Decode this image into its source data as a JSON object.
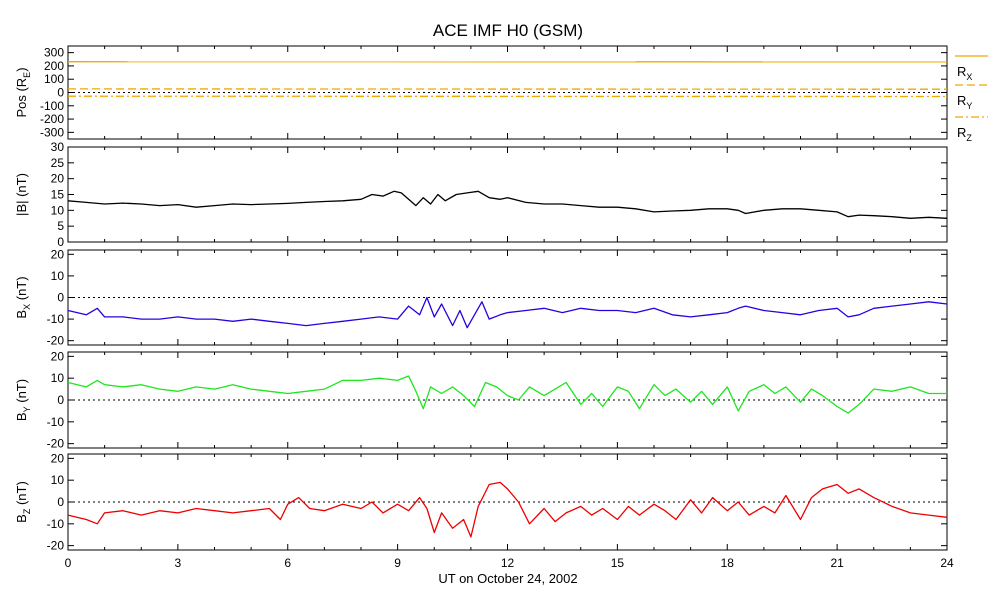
{
  "chart_data": {
    "type": "line",
    "title": "ACE IMF H0 (GSM)",
    "xlabel": "UT on October 24, 2002",
    "xlim": [
      0,
      24
    ],
    "x_ticks": [
      0,
      3,
      6,
      9,
      12,
      15,
      18,
      21,
      24
    ],
    "x_tick_labels": [
      "0",
      "3",
      "6",
      "9",
      "12",
      "15",
      "18",
      "21",
      "24"
    ],
    "colors": {
      "black": "#000000",
      "blue": "#2b00e0",
      "green": "#1ee61e",
      "red": "#ee0000",
      "orange": "#f0a800"
    },
    "panels": [
      {
        "id": "pos",
        "ylabel_main": "Pos (R",
        "ylabel_sub": "E",
        "ylabel_tail": ")",
        "ylim": [
          -350,
          350
        ],
        "yticks": [
          -300,
          -200,
          -100,
          0,
          100,
          200,
          300
        ],
        "ytick_labels": [
          "-300",
          "-200",
          "-100",
          "0",
          "100",
          "200",
          "300"
        ],
        "zero_line": true,
        "series": [
          {
            "name": "R",
            "sub": "X",
            "color": "#f0a800",
            "dash": "solid",
            "x": [
              0,
              24
            ],
            "y": [
              232,
              230
            ]
          },
          {
            "name": "R",
            "sub": "Y",
            "color": "#f0a800",
            "dash": "dashed",
            "x": [
              0,
              24
            ],
            "y": [
              27,
              25
            ]
          },
          {
            "name": "R",
            "sub": "Z",
            "color": "#f0a800",
            "dash": "dashdot",
            "x": [
              0,
              24
            ],
            "y": [
              -28,
              -30
            ]
          }
        ]
      },
      {
        "id": "btot",
        "ylabel_main": "|B| (nT)",
        "ylim": [
          0,
          30
        ],
        "yticks": [
          0,
          5,
          10,
          15,
          20,
          25,
          30
        ],
        "ytick_labels": [
          "0",
          "5",
          "10",
          "15",
          "20",
          "25",
          "30"
        ],
        "zero_line": false,
        "series": [
          {
            "name": "|B|",
            "color": "#000000",
            "x": [
              0,
              0.5,
              1,
              1.5,
              2,
              2.5,
              3,
              3.5,
              4,
              4.5,
              5,
              5.5,
              6,
              6.5,
              7,
              7.5,
              8,
              8.3,
              8.6,
              8.9,
              9.1,
              9.3,
              9.5,
              9.7,
              9.9,
              10.1,
              10.3,
              10.6,
              10.9,
              11.2,
              11.5,
              11.8,
              12,
              12.5,
              13,
              13.5,
              14,
              14.5,
              15,
              15.5,
              16,
              16.5,
              17,
              17.5,
              18,
              18.3,
              18.5,
              19,
              19.5,
              20,
              20.5,
              21,
              21.3,
              21.6,
              22,
              22.5,
              23,
              23.5,
              24
            ],
            "y": [
              13,
              12.5,
              12,
              12.3,
              12,
              11.5,
              11.8,
              11,
              11.5,
              12,
              11.8,
              12,
              12.2,
              12.5,
              12.8,
              13,
              13.5,
              15,
              14.5,
              16,
              15.5,
              13.5,
              11.5,
              14,
              12,
              15,
              13,
              15,
              15.5,
              16,
              14,
              13.5,
              14,
              12.5,
              12,
              12,
              11.5,
              11,
              11,
              10.5,
              9.5,
              9.8,
              10,
              10.5,
              10.5,
              10,
              9,
              10,
              10.5,
              10.5,
              10,
              9.5,
              8,
              8.5,
              8.3,
              8,
              7.5,
              7.8,
              7.5
            ]
          }
        ]
      },
      {
        "id": "bx",
        "ylabel_main": "B",
        "ylabel_sub": "X",
        "ylabel_tail": " (nT)",
        "ylim": [
          -22,
          22
        ],
        "yticks": [
          -20,
          -10,
          0,
          10,
          20
        ],
        "ytick_labels": [
          "-20",
          "-10",
          "0",
          "10",
          "20"
        ],
        "zero_line": true,
        "series": [
          {
            "name": "B_X",
            "color": "#2b00e0",
            "x": [
              0,
              0.5,
              0.8,
              1,
              1.5,
              2,
              2.5,
              3,
              3.5,
              4,
              4.5,
              5,
              5.5,
              6,
              6.5,
              7,
              7.5,
              8,
              8.5,
              9,
              9.3,
              9.6,
              9.8,
              10,
              10.2,
              10.5,
              10.7,
              10.9,
              11.1,
              11.3,
              11.5,
              11.8,
              12,
              12.5,
              13,
              13.5,
              14,
              14.5,
              15,
              15.5,
              16,
              16.5,
              17,
              17.5,
              18,
              18.3,
              18.5,
              19,
              19.5,
              20,
              20.5,
              21,
              21.3,
              21.6,
              22,
              22.5,
              23,
              23.5,
              24
            ],
            "y": [
              -6,
              -8,
              -5,
              -9,
              -9,
              -10,
              -10,
              -9,
              -10,
              -10,
              -11,
              -10,
              -11,
              -12,
              -13,
              -12,
              -11,
              -10,
              -9,
              -10,
              -4,
              -8,
              0,
              -9,
              -3,
              -13,
              -6,
              -14,
              -8,
              -2,
              -10,
              -8,
              -7,
              -6,
              -5,
              -7,
              -5,
              -6,
              -6,
              -7,
              -5,
              -8,
              -9,
              -8,
              -7,
              -5,
              -4,
              -6,
              -7,
              -8,
              -6,
              -5,
              -9,
              -8,
              -5,
              -4,
              -3,
              -2,
              -3
            ]
          }
        ]
      },
      {
        "id": "by",
        "ylabel_main": "B",
        "ylabel_sub": "Y",
        "ylabel_tail": " (nT)",
        "ylim": [
          -22,
          22
        ],
        "yticks": [
          -20,
          -10,
          0,
          10,
          20
        ],
        "ytick_labels": [
          "-20",
          "-10",
          "0",
          "10",
          "20"
        ],
        "zero_line": true,
        "series": [
          {
            "name": "B_Y",
            "color": "#1ee61e",
            "x": [
              0,
              0.5,
              0.8,
              1,
              1.5,
              2,
              2.5,
              3,
              3.5,
              4,
              4.5,
              5,
              5.5,
              6,
              6.5,
              7,
              7.5,
              8,
              8.5,
              9,
              9.3,
              9.5,
              9.7,
              9.9,
              10.2,
              10.5,
              10.8,
              11.1,
              11.4,
              11.7,
              12,
              12.3,
              12.6,
              13,
              13.3,
              13.6,
              14,
              14.3,
              14.6,
              15,
              15.3,
              15.6,
              16,
              16.3,
              16.6,
              17,
              17.3,
              17.6,
              18,
              18.3,
              18.6,
              19,
              19.3,
              19.6,
              20,
              20.3,
              20.6,
              21,
              21.3,
              21.6,
              22,
              22.5,
              23,
              23.5,
              24
            ],
            "y": [
              8,
              6,
              9,
              7,
              6,
              7,
              5,
              4,
              6,
              5,
              7,
              5,
              4,
              3,
              4,
              5,
              9,
              9,
              10,
              9,
              11,
              4,
              -4,
              6,
              3,
              6,
              2,
              -3,
              8,
              6,
              2,
              0,
              6,
              2,
              5,
              8,
              -2,
              3,
              -3,
              6,
              4,
              -4,
              7,
              2,
              5,
              -1,
              4,
              -2,
              6,
              -5,
              4,
              7,
              3,
              6,
              -1,
              5,
              2,
              -3,
              -6,
              -2,
              5,
              4,
              6,
              3,
              3
            ]
          }
        ]
      },
      {
        "id": "bz",
        "ylabel_main": "B",
        "ylabel_sub": "Z",
        "ylabel_tail": " (nT)",
        "ylim": [
          -22,
          22
        ],
        "yticks": [
          -20,
          -10,
          0,
          10,
          20
        ],
        "ytick_labels": [
          "-20",
          "-10",
          "0",
          "10",
          "20"
        ],
        "zero_line": true,
        "series": [
          {
            "name": "B_Z",
            "color": "#ee0000",
            "x": [
              0,
              0.5,
              0.8,
              1,
              1.5,
              2,
              2.5,
              3,
              3.5,
              4,
              4.5,
              5,
              5.5,
              5.8,
              6,
              6.3,
              6.6,
              7,
              7.5,
              8,
              8.3,
              8.6,
              9,
              9.3,
              9.6,
              9.8,
              10,
              10.2,
              10.5,
              10.8,
              11,
              11.2,
              11.5,
              11.8,
              12,
              12.3,
              12.6,
              13,
              13.3,
              13.6,
              14,
              14.3,
              14.6,
              15,
              15.3,
              15.6,
              16,
              16.3,
              16.6,
              17,
              17.3,
              17.6,
              18,
              18.3,
              18.6,
              19,
              19.3,
              19.6,
              20,
              20.3,
              20.6,
              21,
              21.3,
              21.6,
              22,
              22.5,
              23,
              23.5,
              24
            ],
            "y": [
              -6,
              -8,
              -10,
              -5,
              -4,
              -6,
              -4,
              -5,
              -3,
              -4,
              -5,
              -4,
              -3,
              -8,
              -1,
              2,
              -3,
              -4,
              -1,
              -3,
              0,
              -5,
              -1,
              -4,
              2,
              -3,
              -14,
              -5,
              -12,
              -8,
              -16,
              -2,
              8,
              9,
              6,
              0,
              -10,
              -3,
              -9,
              -5,
              -2,
              -6,
              -3,
              -8,
              -2,
              -6,
              -1,
              -4,
              -8,
              1,
              -5,
              2,
              -4,
              0,
              -6,
              -2,
              -5,
              3,
              -8,
              2,
              6,
              8,
              4,
              6,
              2,
              -2,
              -5,
              -6,
              -7
            ]
          }
        ]
      }
    ]
  }
}
